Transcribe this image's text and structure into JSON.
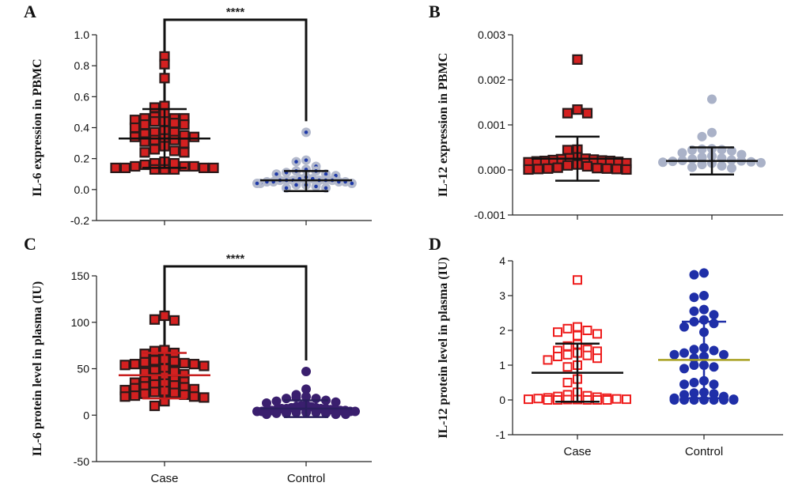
{
  "chart_data": [
    {
      "panel": "A",
      "type": "scatter",
      "ylabel": "IL-6 expression in PBMC",
      "ylim": [
        -0.2,
        1.0
      ],
      "yticks": [
        "1.0",
        "0.8",
        "0.6",
        "0.4",
        "0.2",
        "0.0",
        "-0.2"
      ],
      "categories": [
        "Case",
        "Control"
      ],
      "category_labels_shown": false,
      "significance": "****",
      "series": [
        {
          "category": "Case",
          "marker": "square-filled",
          "fill": "#d42020",
          "edge": "#2a1a1a",
          "bar_color": "#111111",
          "mean": 0.33,
          "sd_low": 0.14,
          "sd_high": 0.52,
          "values": [
            0.86,
            0.81,
            0.72,
            0.54,
            0.53,
            0.49,
            0.47,
            0.46,
            0.46,
            0.46,
            0.45,
            0.44,
            0.44,
            0.43,
            0.42,
            0.42,
            0.4,
            0.38,
            0.37,
            0.37,
            0.36,
            0.35,
            0.34,
            0.34,
            0.33,
            0.32,
            0.32,
            0.31,
            0.3,
            0.28,
            0.26,
            0.25,
            0.24,
            0.24,
            0.18,
            0.17,
            0.16,
            0.15,
            0.15,
            0.14,
            0.14,
            0.14,
            0.13,
            0.13,
            0.13,
            0.14,
            0.15,
            0.17
          ]
        },
        {
          "category": "Control",
          "marker": "circle-filled",
          "fill": "#b3b9cc",
          "inner": "#1f3aa8",
          "bar_color": "#111111",
          "mean": 0.06,
          "sd_low": -0.01,
          "sd_high": 0.12,
          "values": [
            0.37,
            0.19,
            0.18,
            0.15,
            0.13,
            0.12,
            0.12,
            0.11,
            0.1,
            0.1,
            0.09,
            0.08,
            0.07,
            0.07,
            0.06,
            0.06,
            0.06,
            0.06,
            0.06,
            0.06,
            0.05,
            0.05,
            0.05,
            0.05,
            0.04,
            0.04,
            0.04,
            0.03,
            0.03,
            0.02,
            0.01,
            0.01
          ]
        }
      ]
    },
    {
      "panel": "B",
      "type": "scatter",
      "ylabel": "IL-12 expression in PBMC",
      "ylim": [
        -0.001,
        0.003
      ],
      "yticks": [
        "0.003",
        "0.002",
        "0.001",
        "0.000",
        "-0.001"
      ],
      "categories": [
        "Case",
        "Control"
      ],
      "category_labels_shown": false,
      "series": [
        {
          "category": "Case",
          "marker": "square-filled",
          "fill": "#d42020",
          "edge": "#2a1a1a",
          "bar_color": "#111111",
          "mean": 0.00025,
          "sd_low": -0.00024,
          "sd_high": 0.00074,
          "values": [
            0.00245,
            0.00134,
            0.00126,
            0.00126,
            0.00045,
            0.00044,
            0.00028,
            0.00026,
            0.00025,
            0.00024,
            0.00023,
            0.00022,
            0.00021,
            0.0002,
            0.0002,
            0.00019,
            0.00018,
            0.00017,
            0.00015,
            0.00012,
            0.0001,
            8e-05,
            5e-05,
            4e-05,
            3e-05,
            2e-05,
            1e-05,
            1e-05,
            2e-05,
            3e-05
          ]
        },
        {
          "category": "Control",
          "marker": "circle-filled",
          "fill": "#aab2c8",
          "edge": "#aab2c8",
          "bar_color": "#111111",
          "mean": 0.0002,
          "sd_low": -0.0001,
          "sd_high": 0.0005,
          "values": [
            0.00157,
            0.00083,
            0.00074,
            0.00047,
            0.00046,
            0.00045,
            0.00044,
            0.00042,
            0.00038,
            0.00034,
            0.00031,
            0.00028,
            0.00026,
            0.00024,
            0.00022,
            0.00021,
            0.0002,
            0.00019,
            0.00018,
            0.00017,
            0.00016,
            0.00015,
            0.00012,
            9e-05,
            6e-05,
            4e-05
          ]
        }
      ]
    },
    {
      "panel": "C",
      "type": "scatter",
      "ylabel": "IL-6 protein level in plasma (IU)",
      "ylim": [
        -50,
        150
      ],
      "yticks": [
        "150",
        "100",
        "50",
        "0",
        "-50"
      ],
      "categories": [
        "Case",
        "Control"
      ],
      "category_labels_shown": true,
      "significance": "****",
      "series": [
        {
          "category": "Case",
          "marker": "square-filled",
          "fill": "#d42020",
          "edge": "#2a1a1a",
          "bar_color": "#c81e1e",
          "mean": 43,
          "sd_low": 18,
          "sd_high": 67,
          "values": [
            107,
            103,
            102,
            70,
            69,
            67,
            66,
            60,
            59,
            58,
            57,
            56,
            55,
            55,
            54,
            53,
            50,
            48,
            47,
            46,
            44,
            42,
            40,
            38,
            37,
            36,
            35,
            34,
            33,
            32,
            31,
            30,
            29,
            28,
            27,
            26,
            25,
            24,
            23,
            22,
            21,
            20,
            20,
            19,
            15,
            10
          ]
        },
        {
          "category": "Control",
          "marker": "circle-filled",
          "fill": "#3a1f6e",
          "edge": "#3a1f6e",
          "bar_color": "#2a1f5e",
          "mean": 7,
          "sd_low": -2,
          "sd_high": 16,
          "values": [
            47,
            28,
            22,
            20,
            19,
            18,
            18,
            16,
            15,
            14,
            13,
            11,
            10,
            9,
            9,
            8,
            8,
            7,
            7,
            7,
            7,
            6,
            6,
            6,
            5,
            5,
            5,
            5,
            4,
            4,
            4,
            4,
            3,
            3,
            3,
            2,
            2,
            2,
            1,
            1,
            1
          ]
        }
      ]
    },
    {
      "panel": "D",
      "type": "scatter",
      "ylabel": "IL-12 protein level in plasma (IU)",
      "ylim": [
        -1,
        4
      ],
      "yticks": [
        "4",
        "3",
        "2",
        "1",
        "0",
        "-1"
      ],
      "categories": [
        "Case",
        "Control"
      ],
      "category_labels_shown": true,
      "series": [
        {
          "category": "Case",
          "marker": "square-open",
          "fill": "#ffffff",
          "edge": "#ee1c1c",
          "bar_color": "#111111",
          "mean": 0.78,
          "sd_low": -0.05,
          "sd_high": 1.62,
          "values": [
            3.45,
            2.1,
            2.05,
            2.0,
            1.95,
            1.9,
            1.85,
            1.6,
            1.55,
            1.45,
            1.42,
            1.4,
            1.35,
            1.3,
            1.28,
            1.25,
            1.2,
            1.15,
            1.0,
            0.95,
            0.6,
            0.5,
            0.22,
            0.15,
            0.12,
            0.1,
            0.08,
            0.06,
            0.05,
            0.04,
            0.03,
            0.02,
            0.02,
            0.01,
            0.01,
            0.0,
            0.0,
            0.0,
            0.0,
            0.0
          ]
        },
        {
          "category": "Control",
          "marker": "circle-filled",
          "fill": "#1f2fa8",
          "edge": "#1f2fa8",
          "bar_color": "#1f2fa8",
          "mean_color": "#a8a020",
          "mean": 1.15,
          "sd_low": 0.05,
          "sd_high": 2.25,
          "values": [
            3.65,
            3.6,
            3.0,
            2.95,
            2.6,
            2.55,
            2.45,
            2.3,
            2.25,
            2.2,
            2.1,
            1.95,
            1.5,
            1.45,
            1.42,
            1.35,
            1.3,
            1.3,
            1.25,
            1.2,
            1.0,
            1.0,
            0.95,
            0.9,
            0.55,
            0.5,
            0.45,
            0.45,
            0.22,
            0.2,
            0.18,
            0.15,
            0.1,
            0.05,
            0.02,
            0.0,
            0.0,
            0.0,
            0.0,
            0.0,
            0.0,
            0.0
          ]
        }
      ]
    }
  ]
}
